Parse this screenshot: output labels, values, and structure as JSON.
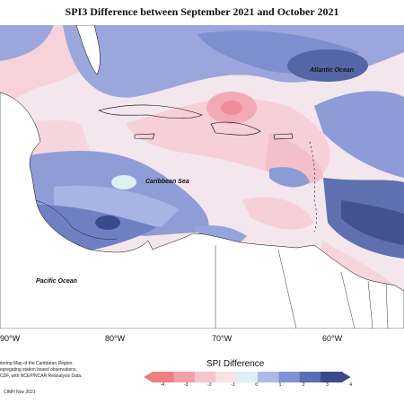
{
  "title": "SPI3 Difference between September 2021 and October 2021",
  "map": {
    "labels": {
      "atlantic": "Atlantic Ocean",
      "caribbean": "Caribbean Sea",
      "pacific": "Pacific Ocean"
    },
    "longitude_ticks": [
      "90°W",
      "80°W",
      "70°W",
      "60°W"
    ]
  },
  "notes": {
    "line1": "itoring Map of the Caribbean Region.",
    "line2": "egregating station based observations,",
    "line3": "CDF, with NCEP/NCAR Reanalysis Data.",
    "credit": "CIMH Nov 2021"
  },
  "legend": {
    "title": "SPI Difference",
    "ticks": [
      "-4",
      "-3",
      "-2",
      "-1",
      "0",
      "1",
      "2",
      "3",
      "4"
    ],
    "colors": [
      "#f08080",
      "#f4a0a8",
      "#f7c6cd",
      "#fbe2e6",
      "#dff0f2",
      "#aeb9e6",
      "#7f92d2",
      "#5a6eb4",
      "#3b4a8c"
    ]
  }
}
